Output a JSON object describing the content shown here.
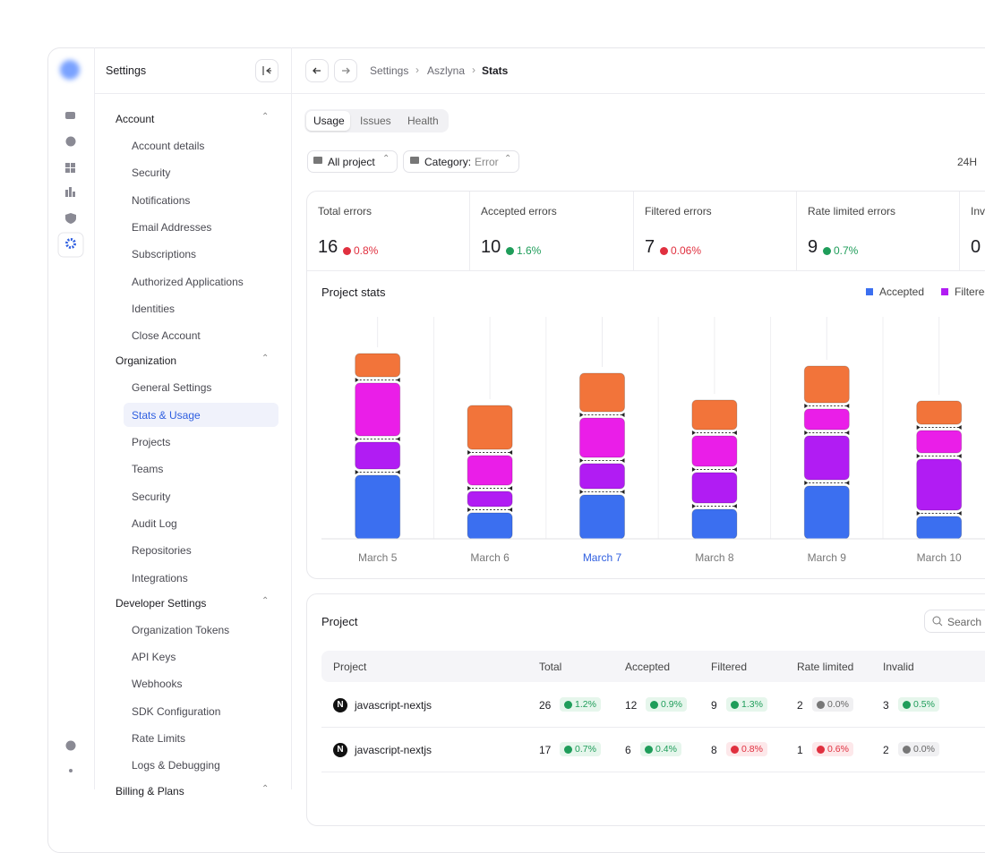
{
  "header": {
    "title": "Settings",
    "breadcrumb": [
      "Settings",
      "Aszlyna",
      "Stats"
    ]
  },
  "sidebar": {
    "groups": [
      {
        "title": "Account",
        "items": [
          "Account details",
          "Security",
          "Notifications",
          "Email Addresses",
          "Subscriptions",
          "Authorized Applications",
          "Identities",
          "Close Account"
        ]
      },
      {
        "title": "Organization",
        "items": [
          "General Settings",
          "Stats & Usage",
          "Projects",
          "Teams",
          "Security",
          "Audit Log",
          "Repositories",
          "Integrations"
        ],
        "active": 1
      },
      {
        "title": "Developer Settings",
        "items": [
          "Organization Tokens",
          "API Keys",
          "Webhooks",
          "SDK Configuration",
          "Rate Limits",
          "Logs & Debugging"
        ]
      },
      {
        "title": "Billing & Plans",
        "items": []
      }
    ]
  },
  "tabs": {
    "items": [
      "Usage",
      "Issues",
      "Health"
    ],
    "active": 0
  },
  "filters": {
    "project": "All project",
    "category_label": "Category:",
    "category_value": "Error",
    "range": "24H"
  },
  "metrics": [
    {
      "label": "Total errors",
      "value": "16",
      "change": "0.8%",
      "trend": "down"
    },
    {
      "label": "Accepted errors",
      "value": "10",
      "change": "1.6%",
      "trend": "up"
    },
    {
      "label": "Filtered errors",
      "value": "7",
      "change": "0.06%",
      "trend": "down"
    },
    {
      "label": "Rate limited errors",
      "value": "9",
      "change": "0.7%",
      "trend": "up"
    },
    {
      "label": "Inv",
      "value": "0"
    }
  ],
  "chart": {
    "type": "stacked-bar",
    "title": "Project stats",
    "categories": [
      "March 5",
      "March 6",
      "March 7",
      "March 8",
      "March 9",
      "March 10"
    ],
    "highlight": 2,
    "series": [
      {
        "name": "Accepted",
        "color": "#3b6ff0",
        "values": [
          71,
          29,
          49,
          33,
          59,
          25
        ]
      },
      {
        "name": "Filtered",
        "color": "#b11cf3",
        "values": [
          30,
          17,
          28,
          34,
          49,
          57
        ]
      },
      {
        "color": "#ea1ee8",
        "values": [
          59,
          33,
          44,
          34,
          23,
          25
        ]
      },
      {
        "color": "#f2743a",
        "values": [
          26,
          49,
          43,
          33,
          41,
          26
        ]
      }
    ]
  },
  "table": {
    "title": "Project",
    "search": "Search",
    "columns": [
      "Project",
      "Total",
      "Accepted",
      "Filtered",
      "Rate limited",
      "Invalid"
    ],
    "rows": [
      {
        "name": "javascript-nextjs",
        "cells": [
          {
            "value": "26",
            "change": "1.2%",
            "trend": "up"
          },
          {
            "value": "12",
            "change": "0.9%",
            "trend": "up"
          },
          {
            "value": "9",
            "change": "1.3%",
            "trend": "up"
          },
          {
            "value": "2",
            "change": "0.0%",
            "trend": "flat"
          },
          {
            "value": "3",
            "change": "0.5%",
            "trend": "up"
          }
        ]
      },
      {
        "name": "javascript-nextjs",
        "cells": [
          {
            "value": "17",
            "change": "0.7%",
            "trend": "up"
          },
          {
            "value": "6",
            "change": "0.4%",
            "trend": "up"
          },
          {
            "value": "8",
            "change": "0.8%",
            "trend": "down"
          },
          {
            "value": "1",
            "change": "0.6%",
            "trend": "down"
          },
          {
            "value": "2",
            "change": "0.0%",
            "trend": "flat"
          }
        ]
      }
    ]
  }
}
